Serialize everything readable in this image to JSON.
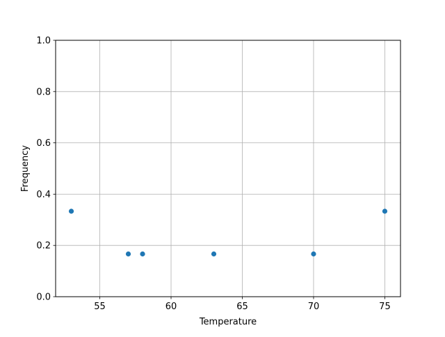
{
  "chart_data": {
    "type": "scatter",
    "title": "",
    "xlabel": "Temperature",
    "ylabel": "Frequency",
    "xlim": [
      51.9,
      76.1
    ],
    "ylim": [
      0,
      1
    ],
    "xticks": [
      55,
      60,
      65,
      70,
      75
    ],
    "xtick_labels": [
      "55",
      "60",
      "65",
      "70",
      "75"
    ],
    "yticks": [
      0,
      0.2,
      0.4,
      0.6,
      0.8,
      1.0
    ],
    "ytick_labels": [
      "0.0",
      "0.2",
      "0.4",
      "0.6",
      "0.8",
      "1.0"
    ],
    "grid": true,
    "points": [
      {
        "x": 53,
        "y": 0.3333
      },
      {
        "x": 57,
        "y": 0.1667
      },
      {
        "x": 58,
        "y": 0.1667
      },
      {
        "x": 63,
        "y": 0.1667
      },
      {
        "x": 70,
        "y": 0.1667
      },
      {
        "x": 75,
        "y": 0.3333
      }
    ],
    "marker_color": "#1f77b4",
    "grid_color": "#b0b0b0"
  }
}
